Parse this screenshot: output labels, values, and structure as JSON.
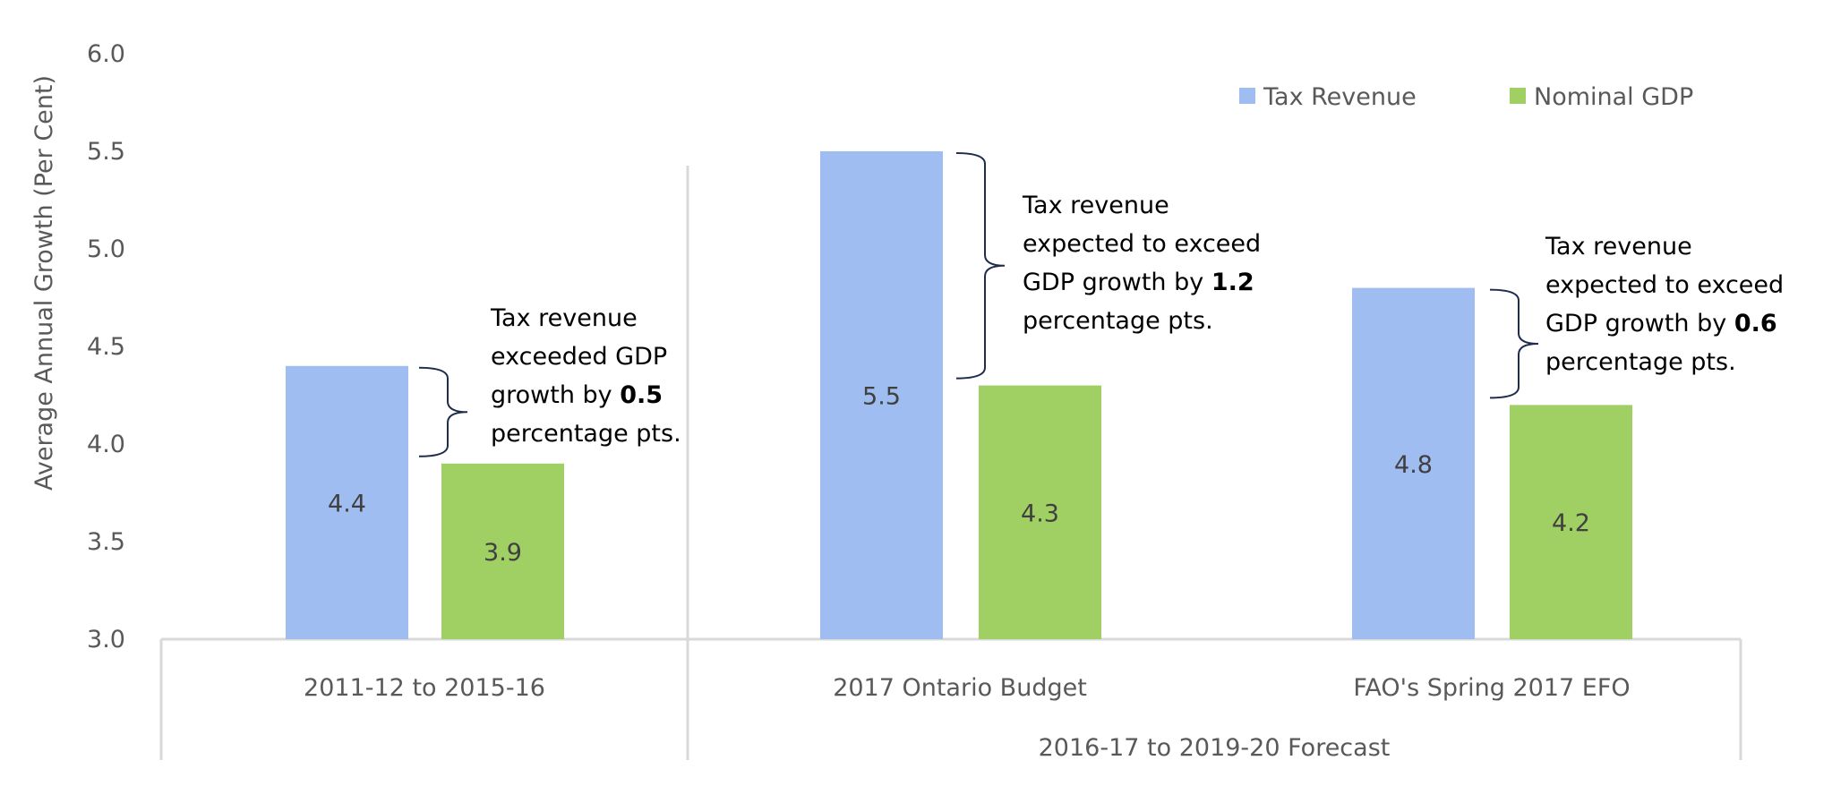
{
  "chart_data": {
    "type": "bar",
    "title": "",
    "xlabel": "",
    "ylabel": "Average Annual Growth (Per Cent)",
    "ylim": [
      3.0,
      6.0
    ],
    "yticks": [
      "3.0",
      "3.5",
      "4.0",
      "4.5",
      "5.0",
      "5.5",
      "6.0"
    ],
    "grid": false,
    "legend_position": "top-right",
    "categories": [
      "2011-12 to 2015-16",
      "2017 Ontario Budget",
      "FAO's Spring 2017 EFO"
    ],
    "category_group_label": "2016-17 to 2019-20 Forecast",
    "category_group_members": [
      "2017 Ontario Budget",
      "FAO's Spring 2017 EFO"
    ],
    "series": [
      {
        "name": "Tax Revenue",
        "color": "#9FBDF0",
        "values": [
          4.4,
          5.5,
          4.8
        ]
      },
      {
        "name": "Nominal GDP",
        "color": "#A0CF63",
        "values": [
          3.9,
          4.3,
          4.2
        ]
      }
    ],
    "annotations": [
      {
        "category": "2011-12 to 2015-16",
        "lines": [
          "Tax revenue",
          "exceeded GDP",
          "growth by ",
          "percentage pts."
        ],
        "bold_value": "0.5",
        "bold_line": 2
      },
      {
        "category": "2017 Ontario Budget",
        "lines": [
          "Tax revenue",
          "expected to exceed",
          "GDP growth by ",
          "percentage pts."
        ],
        "bold_value": "1.2",
        "bold_line": 2
      },
      {
        "category": "FAO's Spring 2017 EFO",
        "lines": [
          "Tax revenue",
          "expected to exceed",
          "GDP growth by ",
          "percentage pts."
        ],
        "bold_value": "0.6",
        "bold_line": 2
      }
    ],
    "brace_color": "#1F2D4D",
    "axis_color": "#D9D9D9"
  }
}
